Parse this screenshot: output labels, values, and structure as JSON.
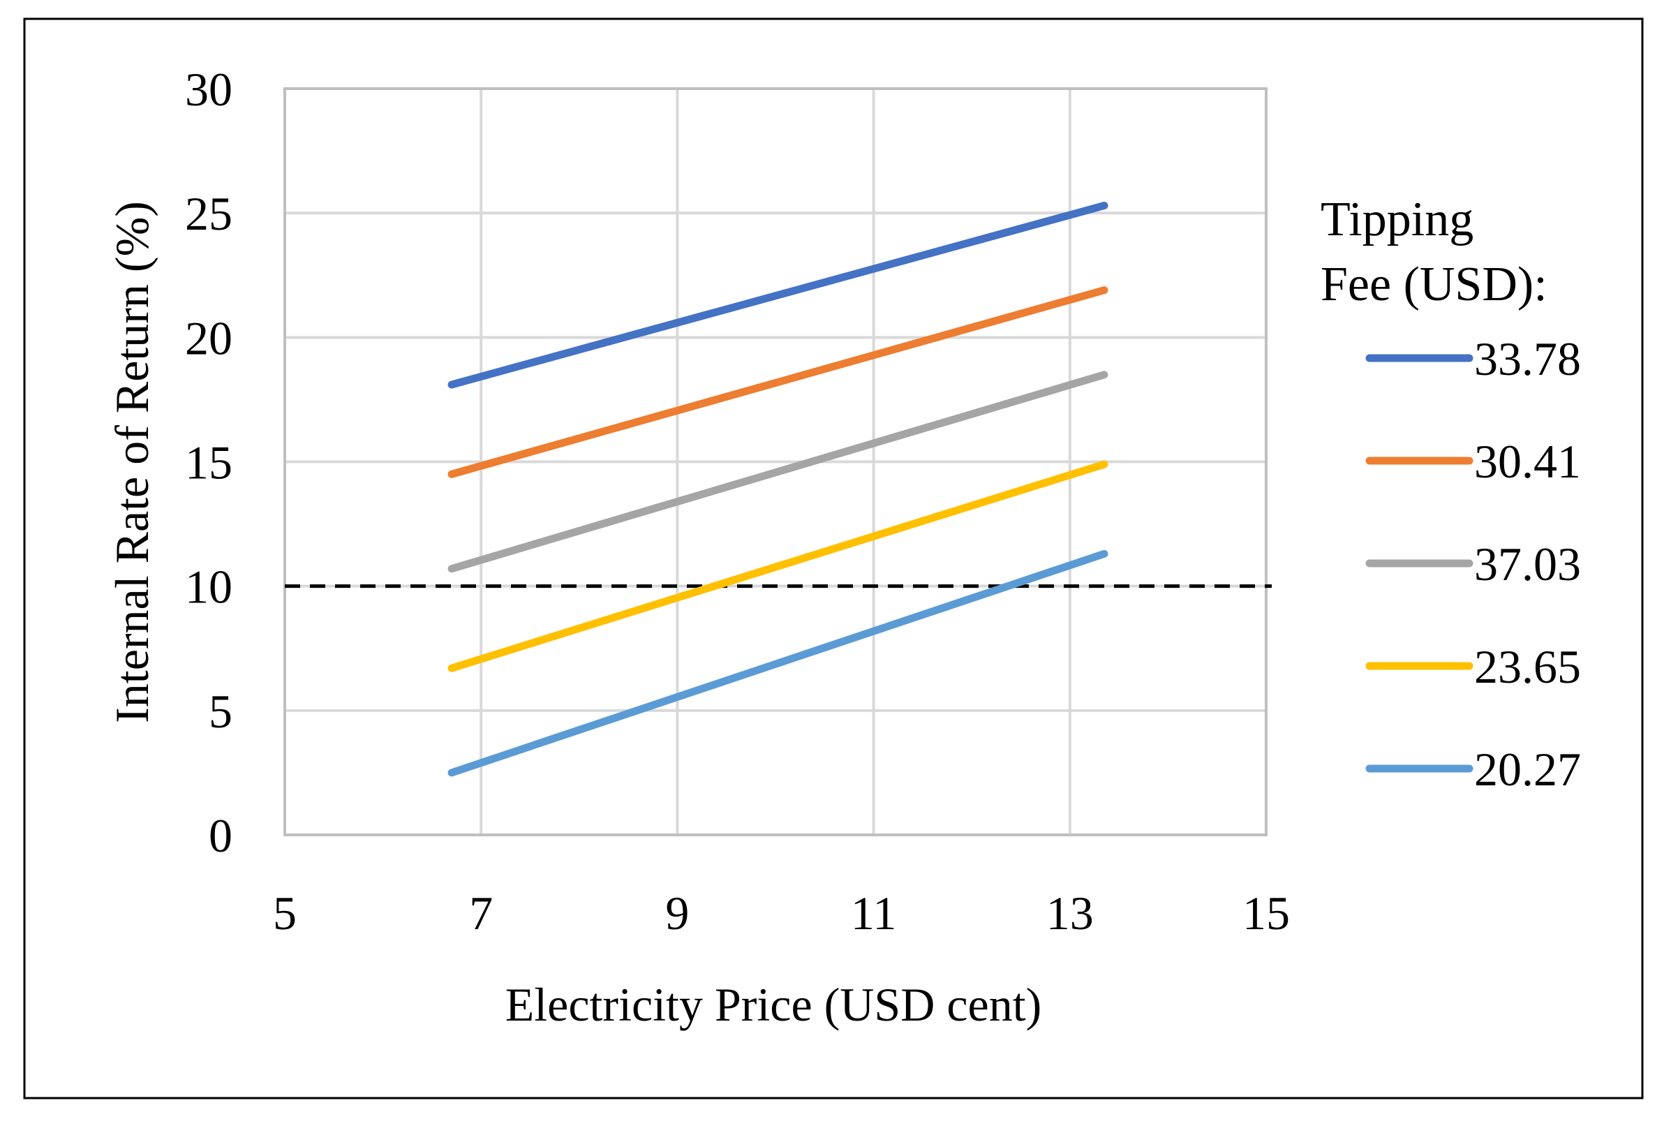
{
  "chart_data": {
    "type": "line",
    "title": "",
    "xlabel": "Electricity Price (USD cent)",
    "ylabel": "Internal Rate of Return (%)",
    "xlim": [
      5,
      15
    ],
    "ylim": [
      0,
      30
    ],
    "xticks": [
      5,
      7,
      9,
      11,
      13,
      15
    ],
    "yticks": [
      0,
      5,
      10,
      15,
      20,
      25,
      30
    ],
    "grid": true,
    "legend": {
      "title_lines": [
        "Tipping",
        "Fee (USD):"
      ],
      "placement": "right"
    },
    "x": [
      6.7,
      13.35
    ],
    "series": [
      {
        "name": "33.78",
        "values": [
          18.1,
          25.3
        ],
        "color": "#4472C4"
      },
      {
        "name": "30.41",
        "values": [
          14.5,
          21.9
        ],
        "color": "#ED7D31"
      },
      {
        "name": "37.03",
        "values": [
          10.7,
          18.5
        ],
        "color": "#A5A5A5"
      },
      {
        "name": "23.65",
        "values": [
          6.7,
          14.9
        ],
        "color": "#FFC000"
      },
      {
        "name": "20.27",
        "values": [
          2.5,
          11.3
        ],
        "color": "#5B9BD5"
      }
    ],
    "reference_line": {
      "y": 10,
      "style": "dashed",
      "color": "#000000"
    }
  }
}
